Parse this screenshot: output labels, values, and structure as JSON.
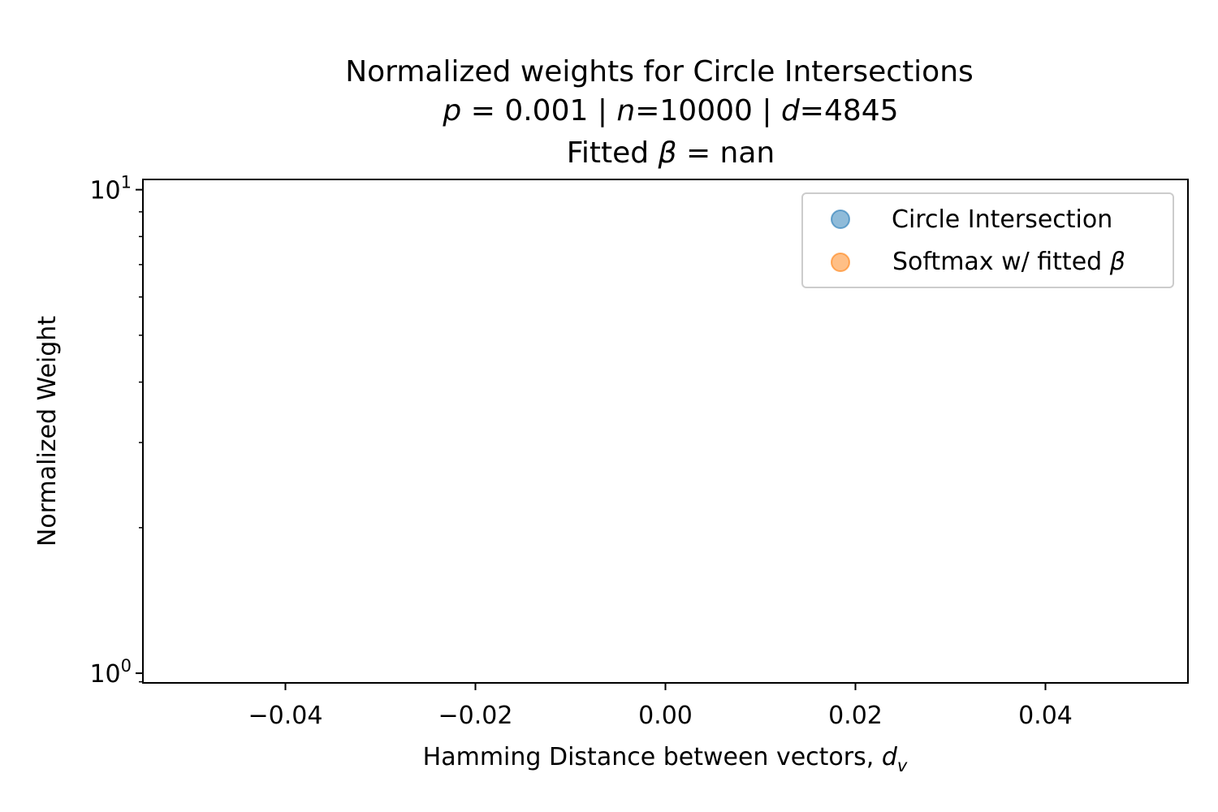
{
  "chart_data": {
    "type": "scatter",
    "title": {
      "line1": "Normalized weights for Circle Intersections",
      "line2": {
        "p_sym": "p",
        "p_eq": " = 0.001 | ",
        "n_sym": "n",
        "n_eq": "=10000 | ",
        "d_sym": "d",
        "d_eq": "=4845"
      },
      "line3": {
        "prefix": "Fitted ",
        "beta_sym": "β",
        "suffix": " = nan"
      }
    },
    "xlabel": {
      "text": "Hamming Distance between vectors, ",
      "sym": "d",
      "sub": "v"
    },
    "ylabel": "Normalized Weight",
    "xlim": [
      -0.055,
      0.055
    ],
    "xticks": [
      -0.04,
      -0.02,
      0.0,
      0.02,
      0.04
    ],
    "xtick_labels": [
      "−0.04",
      "−0.02",
      "0.00",
      "0.02",
      "0.04"
    ],
    "yscale": "log",
    "ylim": [
      0.955,
      10.5
    ],
    "yticks_major": [
      {
        "base": "10",
        "exp": "0",
        "value": 1
      },
      {
        "base": "10",
        "exp": "1",
        "value": 10
      }
    ],
    "yticks_minor": [
      2,
      3,
      4,
      5,
      6,
      7,
      8,
      9
    ],
    "grid": false,
    "legend": {
      "placement": "top-right",
      "entries": [
        {
          "label": "Circle Intersection",
          "color": "#1f77b4"
        },
        {
          "label_prefix": "Softmax w/ fitted ",
          "label_sym": "β",
          "color": "#ff7f0e"
        }
      ]
    },
    "series": [
      {
        "name": "Circle Intersection",
        "color": "#1f77b4",
        "points": []
      },
      {
        "name": "Softmax w/ fitted β",
        "color": "#ff7f0e",
        "points": []
      }
    ]
  }
}
